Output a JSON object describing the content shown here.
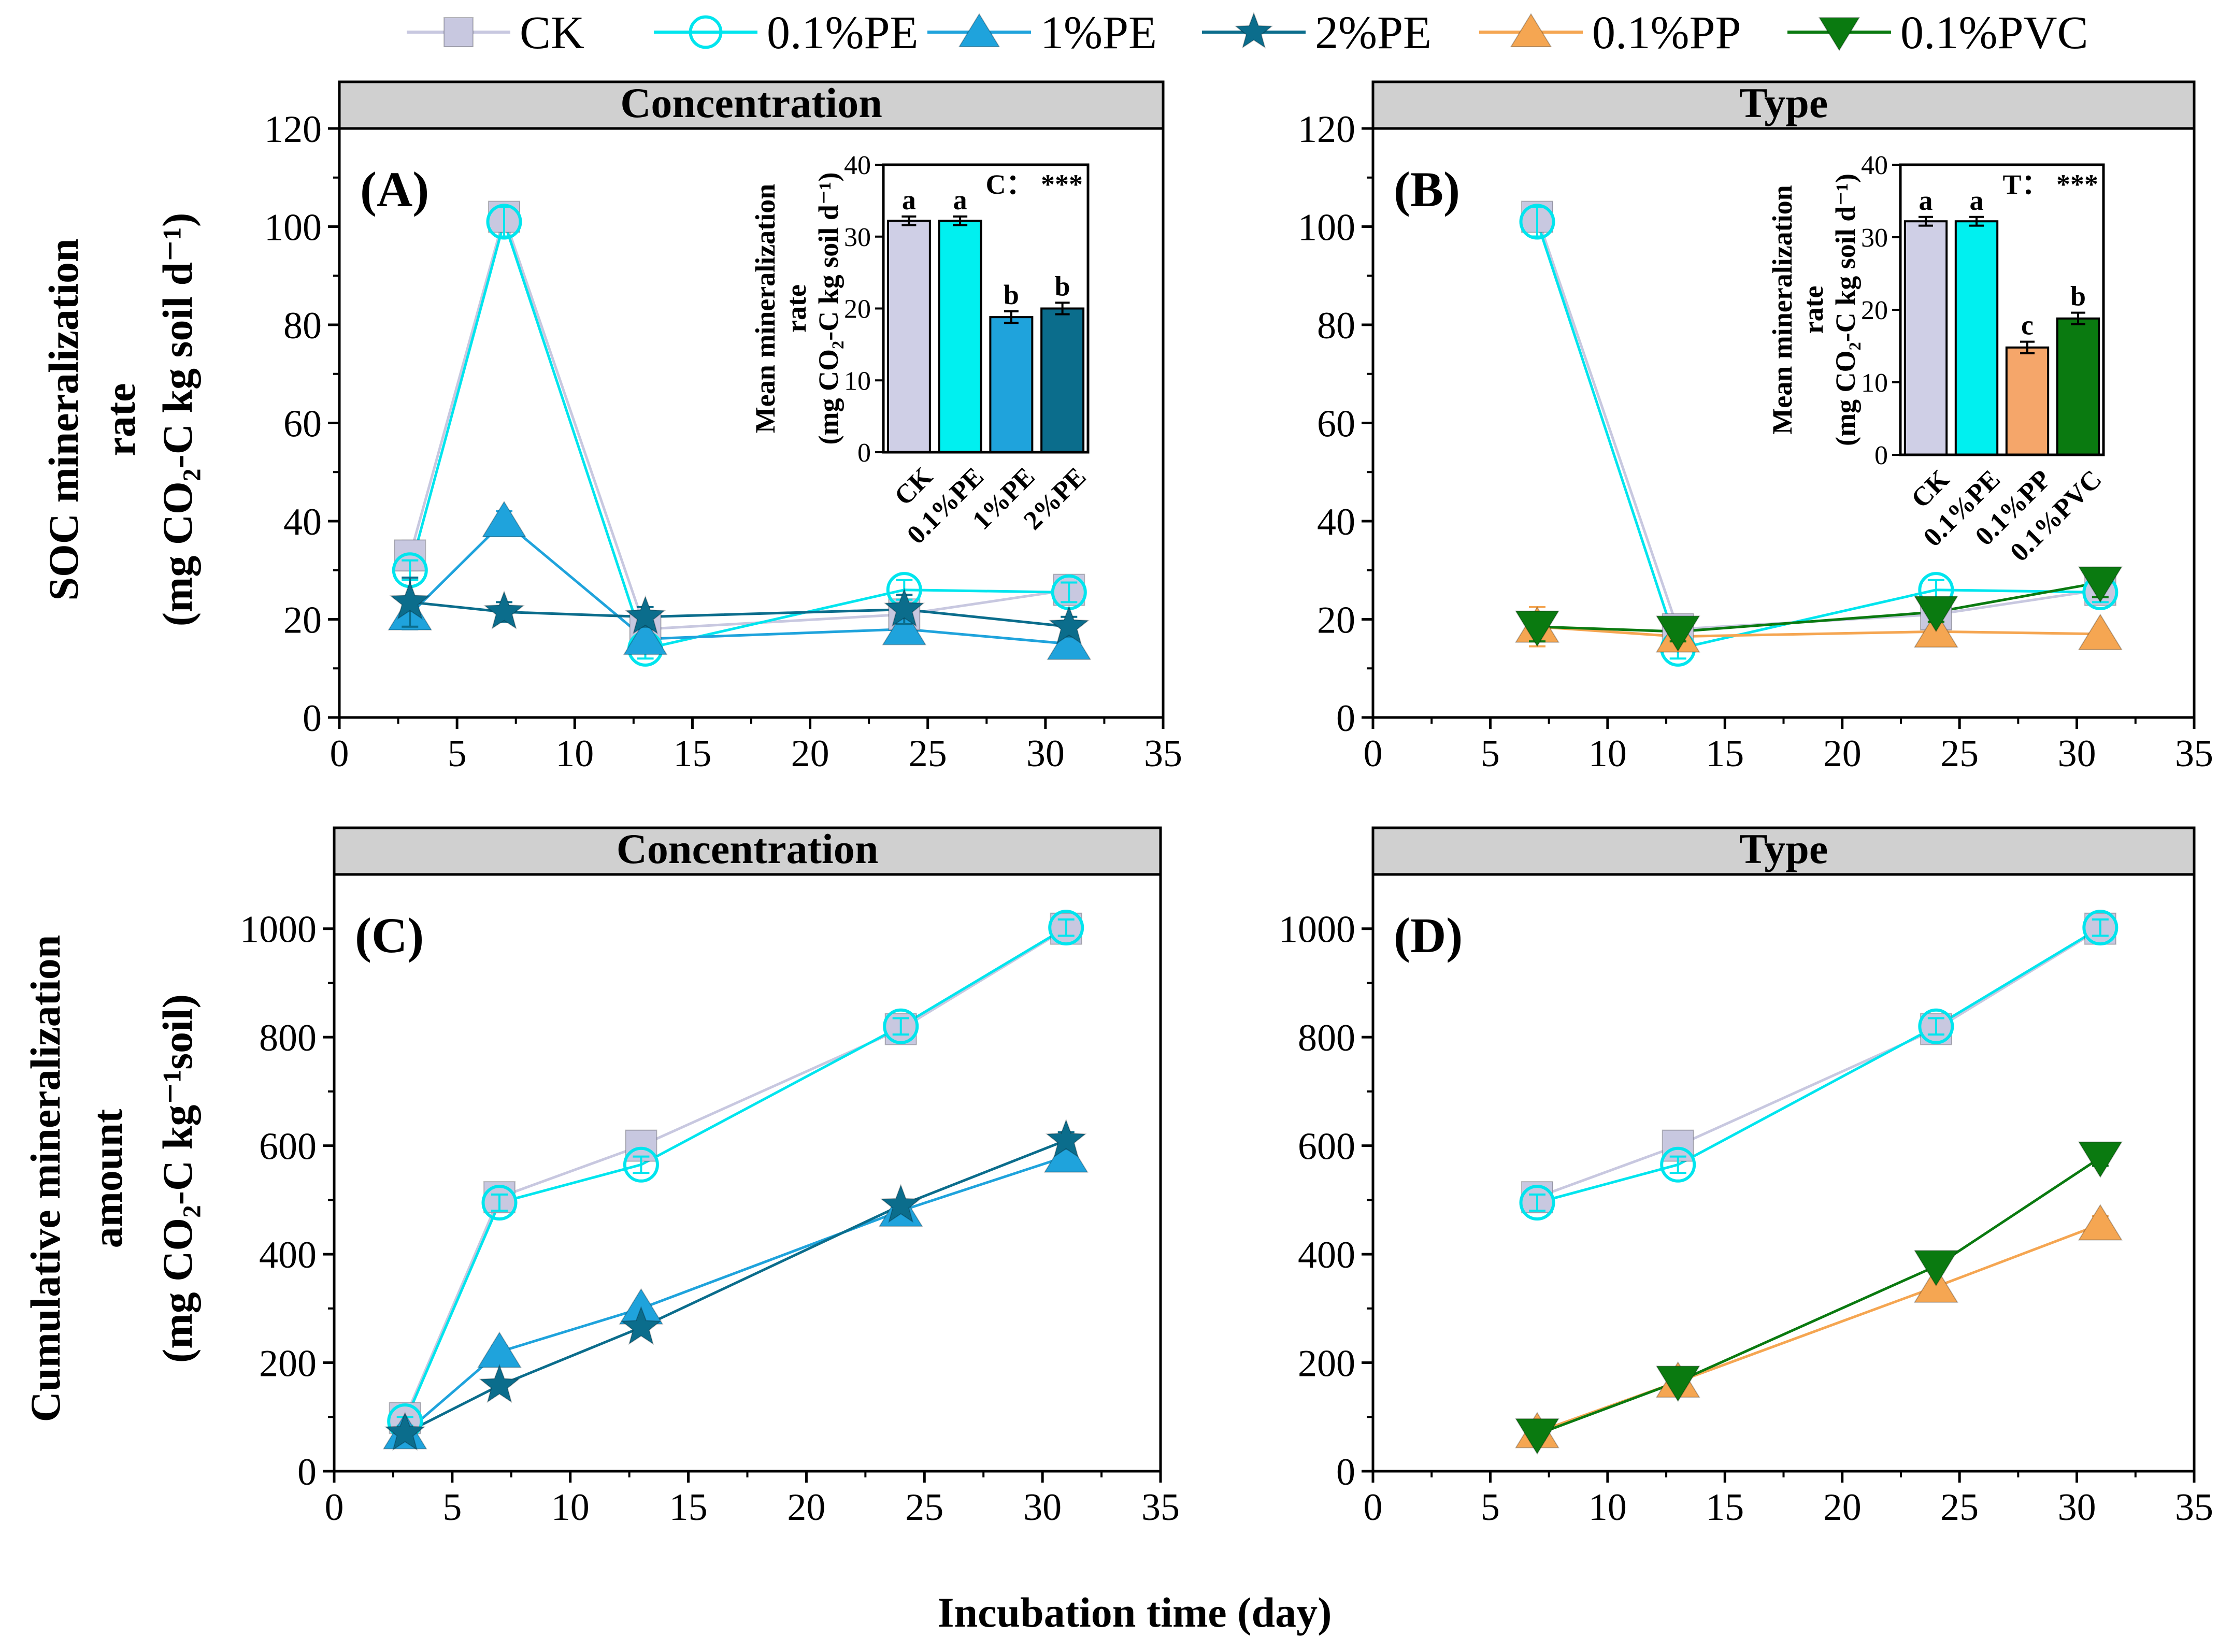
{
  "figure": {
    "xlabel": "Incubation time (day)",
    "rate_ylabel": [
      "SOC mineralization",
      "rate",
      "(mg CO₂-C kg soil d⁻¹)"
    ],
    "cum_ylabel": [
      "Cumulative mineralization",
      "amount",
      "(mg CO₂-C kg⁻¹soil)"
    ],
    "inset_ylabel": [
      "Mean mineralization",
      "rate",
      "(mg CO₂-C kg soil d⁻¹)"
    ]
  },
  "legend": [
    {
      "name": "CK",
      "color": "#c8c8e0",
      "marker": "square"
    },
    {
      "name": "0.1%PE",
      "color": "#00e5ee",
      "marker": "circle-open"
    },
    {
      "name": "1%PE",
      "color": "#1fa3dc",
      "marker": "triangle-up"
    },
    {
      "name": "2%PE",
      "color": "#0b6d8c",
      "marker": "star"
    },
    {
      "name": "0.1%PP",
      "color": "#f5a652",
      "marker": "triangle-up"
    },
    {
      "name": "0.1%PVC",
      "color": "#0a7a10",
      "marker": "triangle-down"
    }
  ],
  "chart_data": [
    {
      "id": "A",
      "label": "(A)",
      "strip": "Concentration",
      "type": "line",
      "xlim": [
        0,
        35
      ],
      "xticks": [
        0,
        5,
        10,
        15,
        20,
        25,
        30,
        35
      ],
      "ylim": [
        0,
        120
      ],
      "yticks": [
        0,
        20,
        40,
        60,
        80,
        100,
        120
      ],
      "series": [
        {
          "name": "CK",
          "x": [
            3,
            7,
            13,
            24,
            31
          ],
          "y": [
            33,
            102,
            18,
            21,
            26
          ],
          "err": [
            3,
            2,
            2,
            2,
            2
          ]
        },
        {
          "name": "0.1%PE",
          "x": [
            3,
            7,
            13,
            24,
            31
          ],
          "y": [
            30,
            101,
            14,
            26,
            25.5
          ],
          "err": [
            2,
            3,
            2,
            2,
            2
          ]
        },
        {
          "name": "1%PE",
          "x": [
            3,
            7,
            13,
            24,
            31
          ],
          "y": [
            21,
            40,
            16,
            18,
            15
          ],
          "err": [
            3,
            2,
            2,
            2,
            1
          ]
        },
        {
          "name": "2%PE",
          "x": [
            3,
            7,
            13,
            24,
            31
          ],
          "y": [
            23.5,
            21.5,
            20.5,
            22,
            18.5
          ],
          "err": [
            5,
            2,
            2,
            3,
            2
          ]
        }
      ],
      "inset": {
        "categories": [
          "CK",
          "0.1%PE",
          "1%PE",
          "2%PE"
        ],
        "values": [
          32.2,
          32.2,
          18.8,
          20.0
        ],
        "errors": [
          0.6,
          0.6,
          0.8,
          0.8
        ],
        "letters": [
          "a",
          "a",
          "b",
          "b"
        ],
        "colors": [
          "#cfcfe6",
          "#00f0f0",
          "#1fa3dc",
          "#0b6d8c"
        ],
        "ylim": [
          0,
          40
        ],
        "yticks": [
          0,
          10,
          20,
          30,
          40
        ],
        "annotation": "C：   ***"
      }
    },
    {
      "id": "B",
      "label": "(B)",
      "strip": "Type",
      "type": "line",
      "xlim": [
        0,
        35
      ],
      "xticks": [
        0,
        5,
        10,
        15,
        20,
        25,
        30,
        35
      ],
      "ylim": [
        0,
        120
      ],
      "yticks": [
        0,
        20,
        40,
        60,
        80,
        100,
        120
      ],
      "series": [
        {
          "name": "CK",
          "x": [
            7,
            13,
            24,
            31
          ],
          "y": [
            102,
            18,
            21,
            26
          ],
          "err": [
            2,
            2,
            2,
            2
          ]
        },
        {
          "name": "0.1%PE",
          "x": [
            7,
            13,
            24,
            31
          ],
          "y": [
            101,
            14,
            26,
            25.5
          ],
          "err": [
            3,
            2,
            2,
            2
          ]
        },
        {
          "name": "0.1%PP",
          "x": [
            7,
            13,
            24,
            31
          ],
          "y": [
            18.5,
            16.5,
            17.5,
            17
          ],
          "err": [
            4,
            2,
            2,
            1
          ]
        },
        {
          "name": "0.1%PVC",
          "x": [
            7,
            13,
            24,
            31
          ],
          "y": [
            18.5,
            17.5,
            21.5,
            27.5
          ],
          "err": [
            3,
            2,
            2,
            3
          ]
        }
      ],
      "inset": {
        "categories": [
          "CK",
          "0.1%PE",
          "0.1%PP",
          "0.1%PVC"
        ],
        "values": [
          32.2,
          32.2,
          14.8,
          18.8
        ],
        "errors": [
          0.6,
          0.6,
          0.8,
          0.8
        ],
        "letters": [
          "a",
          "a",
          "c",
          "b"
        ],
        "colors": [
          "#cfcfe6",
          "#00f0f0",
          "#f5a66a",
          "#0a7a10"
        ],
        "ylim": [
          0,
          40
        ],
        "yticks": [
          0,
          10,
          20,
          30,
          40
        ],
        "annotation": "T：   ***"
      }
    },
    {
      "id": "C",
      "label": "(C)",
      "strip": "Concentration",
      "type": "line",
      "xlim": [
        0,
        35
      ],
      "xticks": [
        0,
        5,
        10,
        15,
        20,
        25,
        30,
        35
      ],
      "ylim": [
        0,
        1100
      ],
      "yticks": [
        0,
        200,
        400,
        600,
        800,
        1000
      ],
      "series": [
        {
          "name": "CK",
          "x": [
            3,
            7,
            13,
            24,
            31
          ],
          "y": [
            98,
            505,
            600,
            815,
            1000
          ],
          "err": [
            8,
            10,
            10,
            15,
            15
          ]
        },
        {
          "name": "0.1%PE",
          "x": [
            3,
            7,
            13,
            24,
            31
          ],
          "y": [
            92,
            495,
            565,
            820,
            1002
          ],
          "err": [
            8,
            15,
            15,
            15,
            15
          ]
        },
        {
          "name": "1%PE",
          "x": [
            3,
            7,
            13,
            24,
            31
          ],
          "y": [
            70,
            220,
            300,
            480,
            580
          ],
          "err": [
            8,
            10,
            10,
            10,
            15
          ]
        },
        {
          "name": "2%PE",
          "x": [
            3,
            7,
            13,
            24,
            31
          ],
          "y": [
            70,
            158,
            265,
            490,
            610
          ],
          "err": [
            8,
            10,
            10,
            10,
            15
          ]
        }
      ]
    },
    {
      "id": "D",
      "label": "(D)",
      "strip": "Type",
      "type": "line",
      "xlim": [
        0,
        35
      ],
      "xticks": [
        0,
        5,
        10,
        15,
        20,
        25,
        30,
        35
      ],
      "ylim": [
        0,
        1100
      ],
      "yticks": [
        0,
        200,
        400,
        600,
        800,
        1000
      ],
      "series": [
        {
          "name": "CK",
          "x": [
            7,
            13,
            24,
            31
          ],
          "y": [
            505,
            600,
            815,
            1000
          ],
          "err": [
            10,
            10,
            15,
            15
          ]
        },
        {
          "name": "0.1%PE",
          "x": [
            7,
            13,
            24,
            31
          ],
          "y": [
            495,
            565,
            820,
            1002
          ],
          "err": [
            15,
            15,
            15,
            15
          ]
        },
        {
          "name": "0.1%PP",
          "x": [
            7,
            13,
            24,
            31
          ],
          "y": [
            72,
            165,
            340,
            455
          ],
          "err": [
            10,
            10,
            10,
            15
          ]
        },
        {
          "name": "0.1%PVC",
          "x": [
            7,
            13,
            24,
            31
          ],
          "y": [
            68,
            165,
            378,
            578
          ],
          "err": [
            10,
            10,
            10,
            15
          ]
        }
      ]
    }
  ]
}
